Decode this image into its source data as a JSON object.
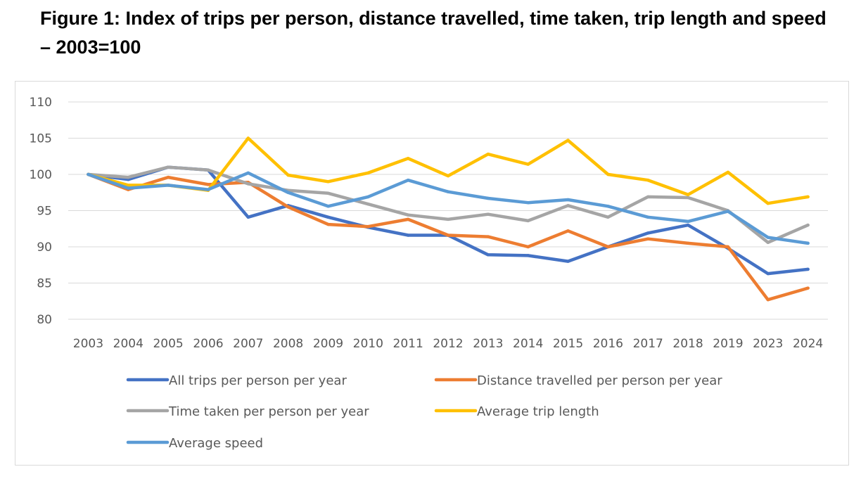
{
  "title": "Figure 1: Index of trips per person, distance travelled, time taken, trip length and speed – 2003=100",
  "chart_data": {
    "type": "line",
    "title": "Figure 1: Index of trips per person, distance travelled, time taken, trip length and speed – 2003=100",
    "xlabel": "",
    "ylabel": "",
    "ylim": [
      80,
      110
    ],
    "yticks": [
      80,
      85,
      90,
      95,
      100,
      105,
      110
    ],
    "grid": true,
    "legend_position": "bottom",
    "categories": [
      "2003",
      "2004",
      "2005",
      "2006",
      "2007",
      "2008",
      "2009",
      "2010",
      "2011",
      "2012",
      "2013",
      "2014",
      "2015",
      "2016",
      "2017",
      "2018",
      "2019",
      "2023",
      "2024"
    ],
    "series": [
      {
        "name": "All trips per person per year",
        "color": "#4472c4",
        "values": [
          100,
          99.3,
          101,
          100.6,
          94.1,
          95.7,
          94.1,
          92.7,
          91.6,
          91.6,
          88.9,
          88.8,
          88.0,
          90.0,
          91.9,
          93.0,
          89.8,
          86.3,
          86.9
        ]
      },
      {
        "name": "Distance travelled per person per year",
        "color": "#ed7d31",
        "values": [
          100,
          97.9,
          99.6,
          98.6,
          98.9,
          95.5,
          93.1,
          92.8,
          93.8,
          91.6,
          91.4,
          90.0,
          92.2,
          90.0,
          91.1,
          90.5,
          90.0,
          82.7,
          84.3
        ]
      },
      {
        "name": "Time taken per person per year",
        "color": "#a5a5a5",
        "values": [
          100,
          99.6,
          101.0,
          100.6,
          98.7,
          97.8,
          97.4,
          95.9,
          94.4,
          93.8,
          94.5,
          93.6,
          95.7,
          94.1,
          96.9,
          96.8,
          95.0,
          90.6,
          93.0
        ]
      },
      {
        "name": "Average trip length",
        "color": "#ffc000",
        "values": [
          100,
          98.5,
          98.5,
          97.8,
          105.0,
          99.9,
          99.0,
          100.2,
          102.2,
          99.8,
          102.8,
          101.4,
          104.7,
          100.0,
          99.2,
          97.2,
          100.3,
          96.0,
          96.9
        ]
      },
      {
        "name": "Average speed",
        "color": "#5b9bd5",
        "values": [
          100,
          98.1,
          98.5,
          97.9,
          100.2,
          97.5,
          95.6,
          96.9,
          99.2,
          97.6,
          96.7,
          96.1,
          96.5,
          95.6,
          94.1,
          93.5,
          94.9,
          91.3,
          90.5
        ]
      }
    ]
  }
}
